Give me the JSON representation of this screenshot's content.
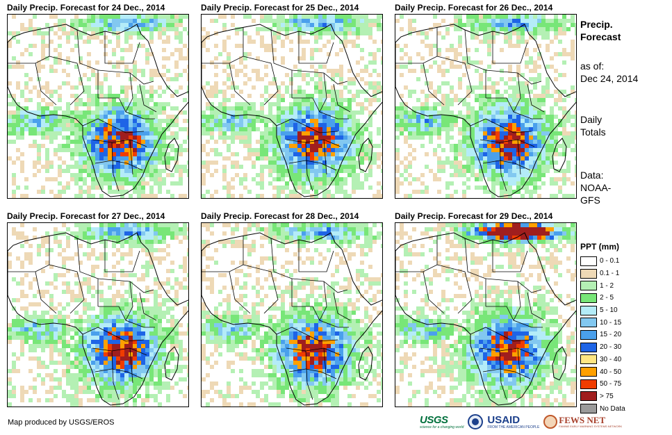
{
  "panels": [
    {
      "title": "Daily Precip. Forecast for 24 Dec., 2014",
      "seed": 11
    },
    {
      "title": "Daily Precip. Forecast for 25 Dec., 2014",
      "seed": 23
    },
    {
      "title": "Daily Precip. Forecast for 26 Dec., 2014",
      "seed": 37
    },
    {
      "title": "Daily Precip. Forecast for 27 Dec., 2014",
      "seed": 41
    },
    {
      "title": "Daily Precip. Forecast for 28 Dec., 2014",
      "seed": 53
    },
    {
      "title": "Daily Precip. Forecast for 29 Dec., 2014",
      "seed": 67
    }
  ],
  "side": {
    "title_line1": "Precip.",
    "title_line2": "Forecast",
    "asof_label": "as of:",
    "asof_date": "Dec 24, 2014",
    "totals_line1": "Daily",
    "totals_line2": "Totals",
    "data_line1": "Data:",
    "data_line2": "NOAA-",
    "data_line3": "GFS"
  },
  "legend": {
    "title": "PPT (mm)",
    "items": [
      {
        "label": "0 - 0.1",
        "color": "#ffffff"
      },
      {
        "label": "0.1 - 1",
        "color": "#eed9b6"
      },
      {
        "label": "1 - 2",
        "color": "#b4f0b4"
      },
      {
        "label": "2 - 5",
        "color": "#78e678"
      },
      {
        "label": "5 - 10",
        "color": "#b4ecf8"
      },
      {
        "label": "10 - 15",
        "color": "#82c8f0"
      },
      {
        "label": "15 - 20",
        "color": "#4aa0ec"
      },
      {
        "label": "20 - 30",
        "color": "#1e64e6"
      },
      {
        "label": "30 - 40",
        "color": "#ffe682"
      },
      {
        "label": "40 - 50",
        "color": "#ffa000"
      },
      {
        "label": "50 - 75",
        "color": "#f03c00"
      },
      {
        "label": "> 75",
        "color": "#a01e1e"
      },
      {
        "label": "No Data",
        "color": "#9b9b9b"
      }
    ]
  },
  "credit": "Map produced by USGS/EROS",
  "logos": {
    "usgs": "USGS",
    "usgs_tagline": "science for a changing world",
    "usaid": "USAID",
    "usaid_tagline": "FROM THE AMERICAN PEOPLE",
    "fews": "FEWS NET",
    "fews_tagline": "FAMINE EARLY WARNING SYSTEMS NETWORK"
  }
}
